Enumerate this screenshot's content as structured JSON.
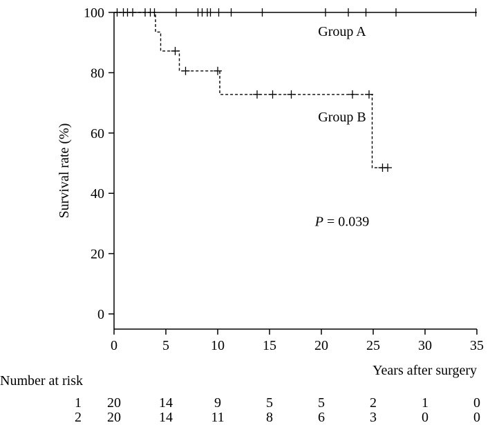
{
  "chart_data": {
    "type": "line",
    "subtype": "kaplan-meier",
    "title": "",
    "xlabel": "Years after surgery",
    "ylabel": "Survival rate (%)",
    "xlim": [
      0,
      35
    ],
    "ylim": [
      0,
      100
    ],
    "xticks": [
      "0",
      "5",
      "10",
      "15",
      "20",
      "25",
      "30",
      "35"
    ],
    "yticks": [
      "0",
      "20",
      "40",
      "60",
      "80",
      "100"
    ],
    "grid": false,
    "legend": "none",
    "series": [
      {
        "name": "Group A",
        "line_style": "solid",
        "steps": [
          [
            0,
            100
          ],
          [
            35,
            100
          ]
        ],
        "censored": [
          [
            0.3,
            100
          ],
          [
            0.9,
            100
          ],
          [
            1.3,
            100
          ],
          [
            1.8,
            100
          ],
          [
            3.0,
            100
          ],
          [
            3.5,
            100
          ],
          [
            3.9,
            100
          ],
          [
            6.0,
            100
          ],
          [
            8.1,
            100
          ],
          [
            8.5,
            100
          ],
          [
            9.0,
            100
          ],
          [
            9.3,
            100
          ],
          [
            10.1,
            100
          ],
          [
            11.3,
            100
          ],
          [
            14.3,
            100
          ],
          [
            20.4,
            100
          ],
          [
            22.6,
            100
          ],
          [
            24.3,
            100
          ],
          [
            27.2,
            100
          ],
          [
            34.9,
            100
          ]
        ]
      },
      {
        "name": "Group B",
        "line_style": "dashed",
        "steps": [
          [
            0,
            100
          ],
          [
            4.0,
            100
          ],
          [
            4.0,
            93.5
          ],
          [
            4.5,
            93.5
          ],
          [
            4.5,
            87.2
          ],
          [
            6.3,
            87.2
          ],
          [
            6.3,
            80.6
          ],
          [
            10.2,
            80.6
          ],
          [
            10.2,
            72.8
          ],
          [
            24.9,
            72.8
          ],
          [
            24.9,
            48.5
          ],
          [
            26.4,
            48.5
          ]
        ],
        "censored": [
          [
            5.9,
            87.2
          ],
          [
            6.9,
            80.6
          ],
          [
            10.0,
            80.6
          ],
          [
            13.8,
            72.8
          ],
          [
            15.3,
            72.8
          ],
          [
            17.1,
            72.8
          ],
          [
            23.0,
            72.8
          ],
          [
            24.6,
            72.8
          ],
          [
            25.9,
            48.5
          ],
          [
            26.4,
            48.5
          ]
        ]
      }
    ],
    "annotations": [
      {
        "text": "Group A",
        "x": 22,
        "y": 93.8
      },
      {
        "text": "Group B",
        "x": 22,
        "y": 65.4
      },
      {
        "text_italic": "P",
        "text": " = 0.039",
        "x": 22,
        "y": 30.8
      }
    ],
    "risk_table": {
      "label": "Number at risk",
      "rows": [
        {
          "name": "1",
          "values": [
            "20",
            "14",
            "9",
            "5",
            "5",
            "2",
            "1",
            "0"
          ]
        },
        {
          "name": "2",
          "values": [
            "20",
            "14",
            "11",
            "8",
            "6",
            "3",
            "0",
            "0"
          ]
        }
      ]
    }
  }
}
